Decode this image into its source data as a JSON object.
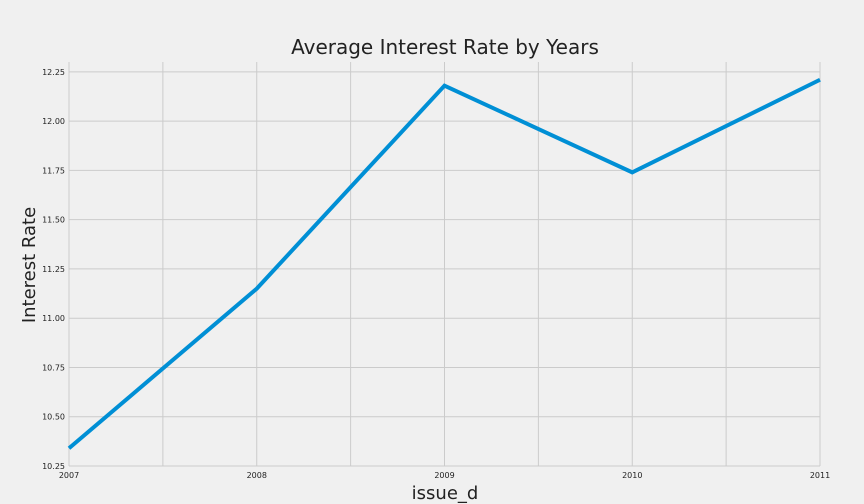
{
  "chart_data": {
    "type": "line",
    "title": "Average Interest Rate by Years",
    "xlabel": "issue_d",
    "ylabel": "Interest Rate",
    "x": [
      2007,
      2008,
      2009,
      2010,
      2011
    ],
    "x_ticks": [
      "2007",
      "2008",
      "2009",
      "2010",
      "2011"
    ],
    "xlim": [
      2007,
      2011
    ],
    "y_ticks": [
      "10.25",
      "10.50",
      "10.75",
      "11.00",
      "11.25",
      "11.50",
      "11.75",
      "12.00",
      "12.25"
    ],
    "ylim": [
      10.25,
      12.3
    ],
    "series": [
      {
        "values": [
          10.34,
          11.15,
          12.18,
          11.74,
          12.21
        ],
        "color": "#008fd5"
      }
    ],
    "grid": true,
    "background": "#f0f0f0",
    "grid_color": "#cbcbcb"
  }
}
